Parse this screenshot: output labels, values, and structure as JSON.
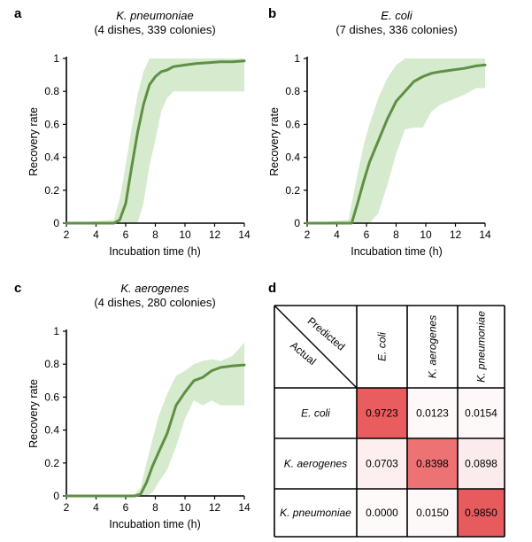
{
  "chart_data": [
    {
      "panel": "a",
      "type": "line",
      "title": "K. pneumoniae",
      "subtitle": "(4 dishes, 339 colonies)",
      "xlabel": "Incubation time (h)",
      "ylabel": "Recovery rate",
      "xlim": [
        2,
        14
      ],
      "ylim": [
        0,
        1
      ],
      "xticks": [
        "2",
        "4",
        "6",
        "8",
        "10",
        "12",
        "14"
      ],
      "yticks": [
        "0",
        "0.2",
        "0.4",
        "0.6",
        "0.8",
        "1"
      ],
      "line_color": "#5f8f44",
      "band_color": "#d6ebce",
      "x": [
        2,
        5.2,
        5.6,
        6.0,
        6.4,
        6.8,
        7.2,
        7.6,
        8.0,
        8.4,
        8.8,
        9.2,
        10.0,
        10.8,
        11.6,
        12.4,
        13.2,
        14.0
      ],
      "y": [
        0,
        0,
        0.02,
        0.12,
        0.34,
        0.55,
        0.72,
        0.84,
        0.89,
        0.92,
        0.93,
        0.95,
        0.96,
        0.97,
        0.975,
        0.98,
        0.98,
        0.985
      ],
      "band_upper": [
        0,
        0.02,
        0.15,
        0.35,
        0.58,
        0.78,
        0.92,
        1.0,
        1.0,
        1.0,
        1.0,
        1.0,
        1.0,
        1.0,
        1.0,
        1.0,
        1.0,
        1.0
      ],
      "band_lower": [
        0,
        0,
        0,
        0,
        0.0,
        0.0,
        0.12,
        0.35,
        0.5,
        0.68,
        0.76,
        0.8,
        0.8,
        0.8,
        0.8,
        0.8,
        0.8,
        0.8
      ]
    },
    {
      "panel": "b",
      "type": "line",
      "title": "E. coli",
      "subtitle": "(7 dishes, 336 colonies)",
      "xlabel": "Incubation time (h)",
      "ylabel": "Recovery rate",
      "xlim": [
        2,
        14
      ],
      "ylim": [
        0,
        1
      ],
      "xticks": [
        "2",
        "4",
        "6",
        "8",
        "10",
        "12",
        "14"
      ],
      "yticks": [
        "0",
        "0.2",
        "0.4",
        "0.6",
        "0.8",
        "1"
      ],
      "line_color": "#5f8f44",
      "band_color": "#d6ebce",
      "x": [
        2,
        4.8,
        5.0,
        5.4,
        5.8,
        6.2,
        6.8,
        7.4,
        8.0,
        8.6,
        9.2,
        9.8,
        10.4,
        11.0,
        11.8,
        12.6,
        13.4,
        14.0
      ],
      "y": [
        0,
        0,
        0.0,
        0.12,
        0.25,
        0.37,
        0.5,
        0.63,
        0.74,
        0.8,
        0.86,
        0.89,
        0.91,
        0.92,
        0.93,
        0.94,
        0.955,
        0.96
      ],
      "band_upper": [
        0,
        0.02,
        0.12,
        0.3,
        0.47,
        0.6,
        0.76,
        0.88,
        0.96,
        1.0,
        1.0,
        1.0,
        1.0,
        1.0,
        1.0,
        1.0,
        1.0,
        1.0
      ],
      "band_lower": [
        0,
        0,
        0,
        0,
        0,
        0,
        0.06,
        0.23,
        0.42,
        0.57,
        0.58,
        0.58,
        0.68,
        0.72,
        0.75,
        0.78,
        0.82,
        0.82
      ]
    },
    {
      "panel": "c",
      "type": "line",
      "title": "K. aerogenes",
      "subtitle": "(4 dishes, 280 colonies)",
      "xlabel": "Incubation time (h)",
      "ylabel": "Recovery rate",
      "xlim": [
        2,
        14
      ],
      "ylim": [
        0,
        1
      ],
      "xticks": [
        "2",
        "4",
        "6",
        "8",
        "10",
        "12",
        "14"
      ],
      "yticks": [
        "0",
        "0.2",
        "0.4",
        "0.6",
        "0.8",
        "1"
      ],
      "line_color": "#5f8f44",
      "band_color": "#d6ebce",
      "x": [
        2,
        6.6,
        7.0,
        7.4,
        7.8,
        8.2,
        8.8,
        9.4,
        10.0,
        10.6,
        11.2,
        11.8,
        12.4,
        13.2,
        14.0
      ],
      "y": [
        0,
        0,
        0.01,
        0.08,
        0.18,
        0.26,
        0.38,
        0.55,
        0.63,
        0.7,
        0.72,
        0.76,
        0.78,
        0.79,
        0.795
      ],
      "band_upper": [
        0,
        0.01,
        0.05,
        0.2,
        0.34,
        0.48,
        0.62,
        0.73,
        0.76,
        0.8,
        0.82,
        0.83,
        0.82,
        0.85,
        0.93
      ],
      "band_lower": [
        0,
        0,
        0,
        0,
        0.02,
        0.08,
        0.16,
        0.3,
        0.47,
        0.58,
        0.55,
        0.58,
        0.55,
        0.55,
        0.55
      ]
    },
    {
      "panel": "d",
      "type": "table",
      "corner_top": "Predicted",
      "corner_bottom": "Actual",
      "columns": [
        "E. coli",
        "K. aerogenes",
        "K. pneumoniae"
      ],
      "rows": [
        "E. coli",
        "K. aerogenes",
        "K. pneumoniae"
      ],
      "values": [
        [
          "0.9723",
          "0.0123",
          "0.0154"
        ],
        [
          "0.0703",
          "0.8398",
          "0.0898"
        ],
        [
          "0.0000",
          "0.0150",
          "0.9850"
        ]
      ],
      "heat_color": "#e8585a"
    }
  ],
  "labels": {
    "panel_a": "a",
    "panel_b": "b",
    "panel_c": "c",
    "panel_d": "d"
  }
}
